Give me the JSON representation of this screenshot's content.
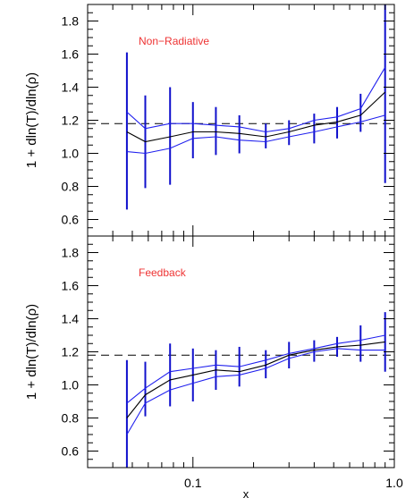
{
  "chart_data": {
    "type": "line",
    "xscale": "log",
    "xlim": [
      0.03,
      1.0
    ],
    "x_ticks": [
      {
        "value": 0.1,
        "label": "0.1"
      },
      {
        "value": 1.0,
        "label": "1.0"
      }
    ],
    "x_minor_ticks": [
      0.03,
      0.04,
      0.05,
      0.06,
      0.07,
      0.08,
      0.09,
      0.2,
      0.3,
      0.4,
      0.5,
      0.6,
      0.7,
      0.8,
      0.9
    ],
    "xlabel": "x",
    "colors": {
      "median": "#000000",
      "bounds": "#2020ee",
      "error_bars": "#1010cc",
      "annotation": "#ee3333"
    },
    "panels": [
      {
        "annotation": "Non−Radiative",
        "ylabel": "1 + dln(T)/dln(ρ)",
        "ylim": [
          0.5,
          1.9
        ],
        "y_ticks": [
          0.6,
          0.8,
          1.0,
          1.2,
          1.4,
          1.6,
          1.8
        ],
        "y_tick_labels": [
          "0.6",
          "0.8",
          "1.0",
          "1.2",
          "1.4",
          "1.6",
          "1.8"
        ],
        "reference_y": 1.18,
        "x": [
          0.047,
          0.058,
          0.077,
          0.1,
          0.13,
          0.17,
          0.23,
          0.3,
          0.4,
          0.52,
          0.68,
          0.9
        ],
        "series": [
          {
            "role": "upper",
            "values": [
              1.25,
              1.15,
              1.18,
              1.18,
              1.17,
              1.16,
              1.13,
              1.15,
              1.2,
              1.22,
              1.27,
              1.52
            ]
          },
          {
            "role": "median",
            "values": [
              1.13,
              1.07,
              1.1,
              1.13,
              1.13,
              1.12,
              1.1,
              1.13,
              1.17,
              1.19,
              1.23,
              1.37
            ]
          },
          {
            "role": "lower",
            "values": [
              1.01,
              1.0,
              1.03,
              1.09,
              1.1,
              1.08,
              1.07,
              1.1,
              1.13,
              1.16,
              1.19,
              1.23
            ]
          }
        ],
        "error_bars": [
          [
            0.66,
            1.61
          ],
          [
            0.79,
            1.35
          ],
          [
            0.81,
            1.4
          ],
          [
            0.97,
            1.31
          ],
          [
            0.99,
            1.28
          ],
          [
            1.0,
            1.23
          ],
          [
            1.03,
            1.18
          ],
          [
            1.05,
            1.2
          ],
          [
            1.06,
            1.24
          ],
          [
            1.09,
            1.28
          ],
          [
            1.13,
            1.36
          ],
          [
            0.82,
            1.9
          ]
        ]
      },
      {
        "annotation": "Feedback",
        "ylabel": "1 + dln(T)/dln(ρ)",
        "ylim": [
          0.5,
          1.9
        ],
        "y_ticks": [
          0.6,
          0.8,
          1.0,
          1.2,
          1.4,
          1.6,
          1.8
        ],
        "y_tick_labels": [
          "0.6",
          "0.8",
          "1.0",
          "1.2",
          "1.4",
          "1.6",
          "1.8"
        ],
        "reference_y": 1.18,
        "x": [
          0.047,
          0.058,
          0.077,
          0.1,
          0.13,
          0.17,
          0.23,
          0.3,
          0.4,
          0.52,
          0.68,
          0.9
        ],
        "series": [
          {
            "role": "upper",
            "values": [
              0.89,
              0.98,
              1.08,
              1.1,
              1.12,
              1.11,
              1.15,
              1.19,
              1.22,
              1.25,
              1.27,
              1.3
            ]
          },
          {
            "role": "median",
            "values": [
              0.8,
              0.94,
              1.03,
              1.06,
              1.09,
              1.08,
              1.12,
              1.18,
              1.21,
              1.23,
              1.24,
              1.26
            ]
          },
          {
            "role": "lower",
            "values": [
              0.7,
              0.89,
              0.97,
              1.01,
              1.05,
              1.06,
              1.1,
              1.16,
              1.2,
              1.22,
              1.21,
              1.21
            ]
          }
        ],
        "error_bars": [
          [
            0.5,
            1.15
          ],
          [
            0.81,
            1.14
          ],
          [
            0.87,
            1.25
          ],
          [
            0.9,
            1.22
          ],
          [
            0.97,
            1.21
          ],
          [
            0.99,
            1.23
          ],
          [
            1.04,
            1.21
          ],
          [
            1.1,
            1.26
          ],
          [
            1.14,
            1.27
          ],
          [
            1.17,
            1.29
          ],
          [
            1.14,
            1.36
          ],
          [
            1.08,
            1.44
          ]
        ]
      }
    ]
  }
}
